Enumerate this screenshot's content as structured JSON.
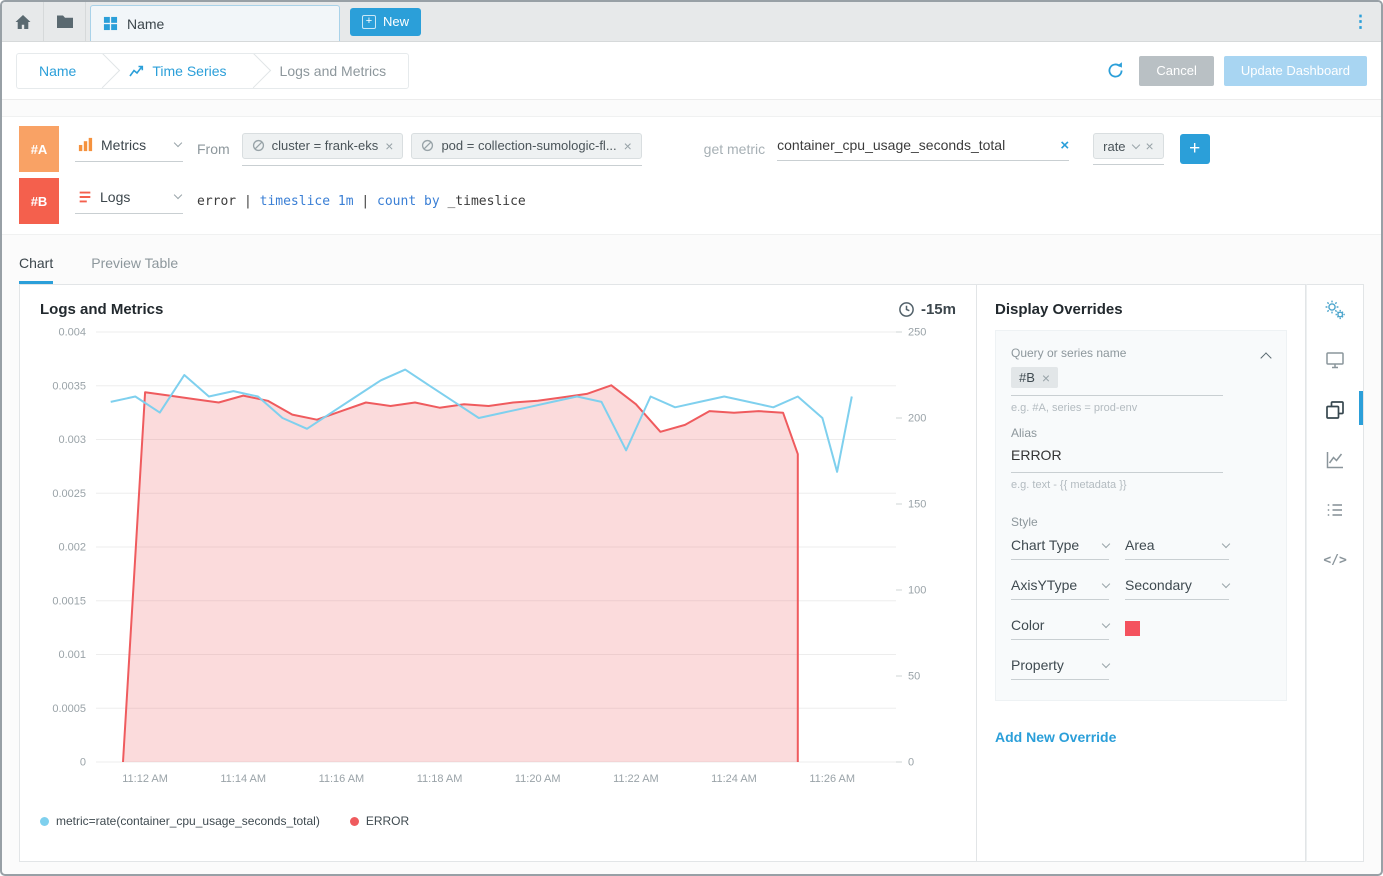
{
  "colors": {
    "accent_blue": "#2b9fd9",
    "badge_a": "#f9a265",
    "badge_b": "#f4604d",
    "series_blue": "#7fd0ee",
    "series_red": "#ef5b5e"
  },
  "icons": {
    "plus": "+",
    "kebab": "⋮",
    "close": "×",
    "code": "</>"
  },
  "tabbar": {
    "tab_name": "Name",
    "new_label": "New"
  },
  "breadcrumb": {
    "items": [
      "Name",
      "Time Series",
      "Logs and Metrics"
    ],
    "cancel_label": "Cancel",
    "update_label": "Update Dashboard"
  },
  "queries": {
    "row_a": {
      "badge": "#A",
      "type_label": "Metrics",
      "from_label": "From",
      "filters": [
        "cluster = frank-eks",
        "pod = collection-sumologic-fl..."
      ],
      "get_metric_label": "get metric",
      "metric_value": "container_cpu_usage_seconds_total",
      "operator_chip": "rate"
    },
    "row_b": {
      "badge": "#B",
      "type_label": "Logs",
      "tokens": [
        {
          "text": "error ",
          "color": "#3c3c3c"
        },
        {
          "text": "| ",
          "color": "#3c3c3c"
        },
        {
          "text": "timeslice 1m",
          "color": "#3a7fd5"
        },
        {
          "text": " | ",
          "color": "#3c3c3c"
        },
        {
          "text": "count by",
          "color": "#3a7fd5"
        },
        {
          "text": " _timeslice",
          "color": "#3c3c3c"
        }
      ]
    }
  },
  "view_tabs": {
    "chart": "Chart",
    "preview": "Preview Table"
  },
  "chart_panel": {
    "title": "Logs and Metrics",
    "time_range": "-15m",
    "legend": [
      {
        "label": "metric=rate(container_cpu_usage_seconds_total)",
        "color": "#7fd0ee"
      },
      {
        "label": "ERROR",
        "color": "#ef5b5e"
      }
    ]
  },
  "chart_data": {
    "type": "line",
    "title": "Logs and Metrics",
    "time_range": "-15m",
    "x_domain_minutes": [
      71.0,
      87.3
    ],
    "x_ticks": [
      {
        "m": 72,
        "label": "11:12 AM"
      },
      {
        "m": 74,
        "label": "11:14 AM"
      },
      {
        "m": 76,
        "label": "11:16 AM"
      },
      {
        "m": 78,
        "label": "11:18 AM"
      },
      {
        "m": 80,
        "label": "11:20 AM"
      },
      {
        "m": 82,
        "label": "11:22 AM"
      },
      {
        "m": 84,
        "label": "11:24 AM"
      },
      {
        "m": 86,
        "label": "11:26 AM"
      }
    ],
    "left_axis": {
      "min": 0,
      "max": 0.004,
      "ticks": [
        0,
        0.0005,
        0.001,
        0.0015,
        0.002,
        0.0025,
        0.003,
        0.0035,
        0.004
      ]
    },
    "right_axis": {
      "min": 0,
      "max": 250,
      "ticks": [
        0,
        50,
        100,
        150,
        200,
        250
      ]
    },
    "series": [
      {
        "name": "metric=rate(container_cpu_usage_seconds_total)",
        "type": "line",
        "axis": "left",
        "color": "#7fd0ee",
        "points": [
          [
            71.3,
            0.00335
          ],
          [
            71.8,
            0.0034
          ],
          [
            72.3,
            0.00325
          ],
          [
            72.8,
            0.0036
          ],
          [
            73.3,
            0.0034
          ],
          [
            73.8,
            0.00345
          ],
          [
            74.3,
            0.0034
          ],
          [
            74.8,
            0.0032
          ],
          [
            75.3,
            0.0031
          ],
          [
            75.8,
            0.00325
          ],
          [
            76.3,
            0.0034
          ],
          [
            76.8,
            0.00355
          ],
          [
            77.3,
            0.00365
          ],
          [
            77.8,
            0.0035
          ],
          [
            78.3,
            0.00335
          ],
          [
            78.8,
            0.0032
          ],
          [
            79.3,
            0.00325
          ],
          [
            79.8,
            0.0033
          ],
          [
            80.3,
            0.00335
          ],
          [
            80.8,
            0.0034
          ],
          [
            81.3,
            0.00335
          ],
          [
            81.8,
            0.0029
          ],
          [
            82.3,
            0.0034
          ],
          [
            82.8,
            0.0033
          ],
          [
            83.3,
            0.00335
          ],
          [
            83.8,
            0.0034
          ],
          [
            84.3,
            0.00335
          ],
          [
            84.8,
            0.0033
          ],
          [
            85.3,
            0.0034
          ],
          [
            85.8,
            0.0032
          ],
          [
            86.1,
            0.0027
          ],
          [
            86.4,
            0.0034
          ]
        ]
      },
      {
        "name": "ERROR",
        "type": "area",
        "axis": "right",
        "color": "#ef5b5e",
        "fill": "rgba(239,91,94,0.22)",
        "points": [
          [
            71.55,
            0
          ],
          [
            72.0,
            215
          ],
          [
            72.5,
            213
          ],
          [
            73.0,
            211
          ],
          [
            73.5,
            209
          ],
          [
            74.0,
            213
          ],
          [
            74.5,
            210
          ],
          [
            75.0,
            202
          ],
          [
            75.5,
            199
          ],
          [
            76.0,
            204
          ],
          [
            76.5,
            209
          ],
          [
            77.0,
            207
          ],
          [
            77.5,
            209
          ],
          [
            78.0,
            206
          ],
          [
            78.5,
            208
          ],
          [
            79.0,
            207
          ],
          [
            79.5,
            209
          ],
          [
            80.0,
            210
          ],
          [
            80.5,
            212
          ],
          [
            81.0,
            214
          ],
          [
            81.5,
            219
          ],
          [
            82.0,
            208
          ],
          [
            82.5,
            192
          ],
          [
            83.0,
            196
          ],
          [
            83.5,
            204
          ],
          [
            84.0,
            203
          ],
          [
            84.5,
            204
          ],
          [
            85.0,
            203
          ],
          [
            85.3,
            179
          ]
        ]
      }
    ]
  },
  "overrides": {
    "title": "Display Overrides",
    "query_label": "Query or series name",
    "query_chip": "#B",
    "query_hint": "e.g. #A, series = prod-env",
    "alias_label": "Alias",
    "alias_value": "ERROR",
    "alias_hint": "e.g. text - {{ metadata }}",
    "style_label": "Style",
    "chart_type_label": "Chart Type",
    "chart_type_value": "Area",
    "axis_label": "AxisYType",
    "axis_value": "Secondary",
    "color_label": "Color",
    "color_swatch": "#f4525e",
    "property_label": "Property",
    "add_link": "Add New Override"
  }
}
